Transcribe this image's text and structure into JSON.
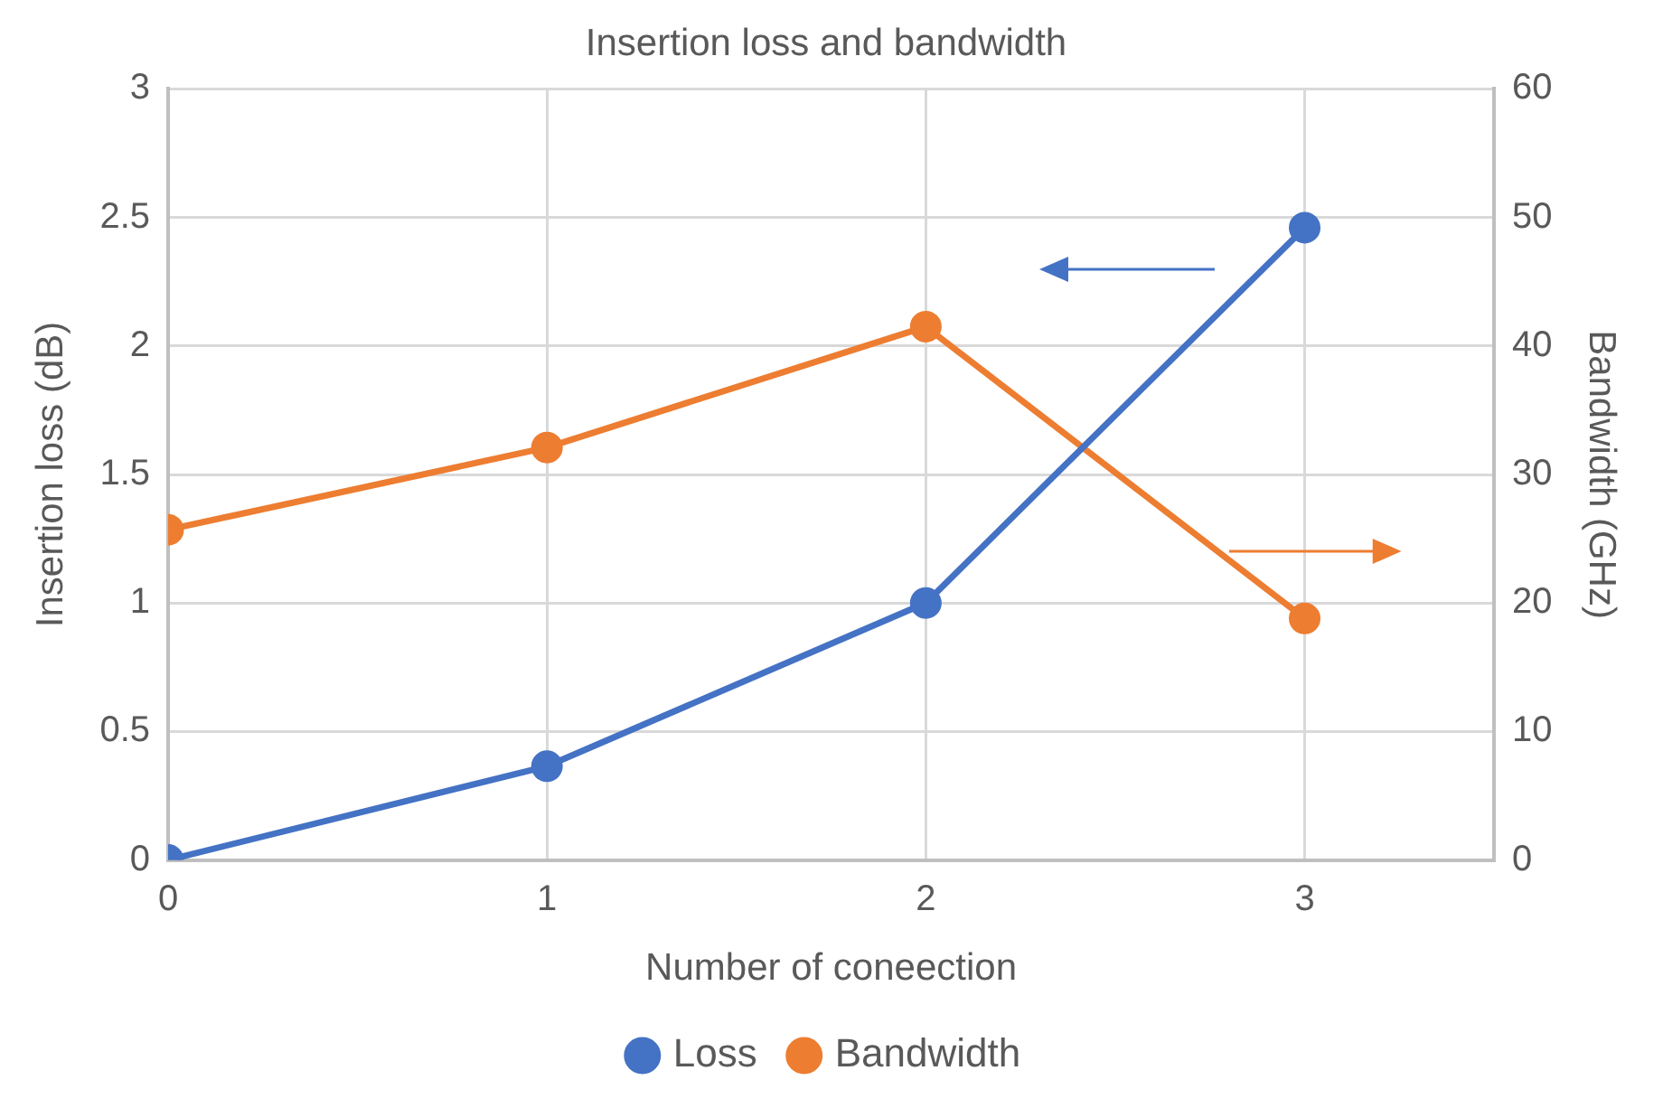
{
  "chart_data": {
    "type": "line",
    "title": "Insertion loss and bandwidth",
    "xlabel": "Number of coneection",
    "ylabel": "Insertion loss (dB)",
    "y2label": "Bandwidth (GHz)",
    "x": [
      0,
      1,
      2,
      3
    ],
    "series": [
      {
        "name": "Loss",
        "color": "#4472c4",
        "values": [
          0,
          0.365,
          1.0,
          2.46
        ]
      },
      {
        "name": "Bandwidth",
        "color": "#ed7d31",
        "values": [
          25.7,
          32.1,
          41.5,
          18.8
        ],
        "axis": "y2"
      }
    ],
    "xlim": [
      0,
      3.5
    ],
    "xticks": [
      0,
      1,
      2,
      3
    ],
    "ylim": [
      0,
      3
    ],
    "yticks": [
      0,
      0.5,
      1,
      1.5,
      2,
      2.5,
      3
    ],
    "y2lim": [
      0,
      60
    ],
    "y2ticks": [
      0,
      10,
      20,
      30,
      40,
      50,
      60
    ],
    "grid": true,
    "legend": "bottom",
    "marker": "circle",
    "line_style": "solid"
  }
}
